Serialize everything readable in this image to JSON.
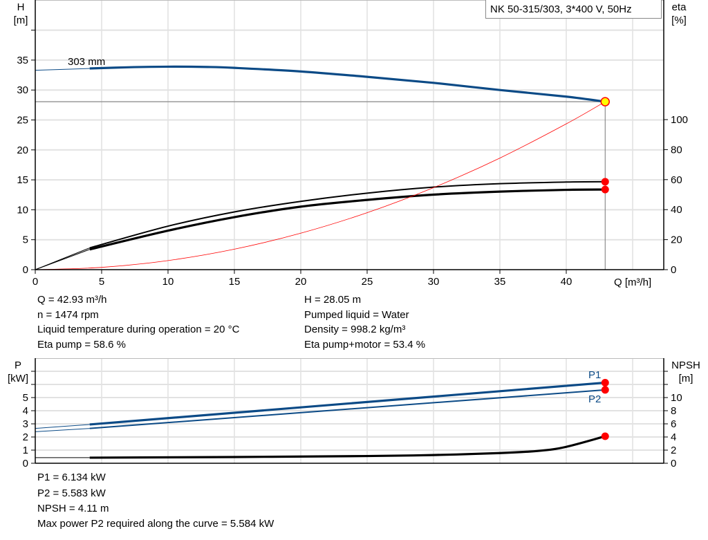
{
  "title": "NK 50-315/303, 3*400 V, 50Hz",
  "colors": {
    "head": "#0b4a86",
    "power": "#0b4a86",
    "eta": "#000000",
    "npsh": "#000000",
    "system": "#ff0000",
    "point": "#ff0000",
    "op_fill": "#ffff00",
    "grid": "#d0d0d0"
  },
  "chart_data": [
    {
      "type": "line",
      "xlabel": "Q [m³/h]",
      "ylabel_left": "H",
      "ylabel_left_unit": "[m]",
      "ylabel_right": "eta",
      "ylabel_right_unit": "[%]",
      "xlim": [
        0,
        47.3
      ],
      "ylim_left": [
        0,
        45
      ],
      "ylim_right": [
        0,
        180
      ],
      "grid": true,
      "x_ticks": [
        "0",
        "5",
        "10",
        "15",
        "20",
        "25",
        "30",
        "35",
        "40"
      ],
      "y_left_ticks": [
        "0",
        "5",
        "10",
        "15",
        "20",
        "25",
        "30",
        "35"
      ],
      "y_right_ticks": [
        "0",
        "20",
        "40",
        "60",
        "80",
        "100"
      ],
      "annotation": "303 mm",
      "operating_point": {
        "Q": 42.93,
        "H": 28.05
      },
      "series": [
        {
          "key": "head",
          "axis": "left",
          "x": [
            0,
            4.1,
            7,
            10,
            13,
            15,
            20,
            25,
            30,
            35,
            40,
            42.93
          ],
          "y": [
            33.3,
            33.6,
            33.8,
            33.9,
            33.85,
            33.7,
            33.1,
            32.2,
            31.2,
            30.0,
            28.9,
            28.05
          ],
          "extrapolated_until": 4.1
        },
        {
          "key": "eta-pump",
          "axis": "right",
          "x": [
            0,
            4.1,
            10,
            15,
            20,
            25,
            30,
            35,
            40,
            42.93
          ],
          "y": [
            0,
            14.5,
            29,
            38.5,
            45.5,
            51,
            55,
            57.3,
            58.4,
            58.6
          ],
          "extrapolated_until": 4.1
        },
        {
          "key": "eta-pump-motor",
          "axis": "right",
          "x": [
            0,
            4.1,
            10,
            15,
            20,
            25,
            30,
            35,
            40,
            42.93
          ],
          "y": [
            0,
            13.5,
            26,
            35,
            42,
            46.5,
            50,
            52,
            53.2,
            53.4
          ],
          "extrapolated_until": 4.1
        },
        {
          "key": "system-curve",
          "axis": "left",
          "x": [
            0,
            5,
            10,
            15,
            20,
            25,
            30,
            35,
            40,
            42.93
          ],
          "y": [
            0,
            0.38,
            1.52,
            3.42,
            6.09,
            9.51,
            13.7,
            18.64,
            24.35,
            28.05
          ]
        }
      ],
      "markers": [
        {
          "axis": "right",
          "x": 42.93,
          "y": 58.6
        },
        {
          "axis": "right",
          "x": 42.93,
          "y": 53.4
        }
      ]
    },
    {
      "type": "line",
      "ylabel_left": "P",
      "ylabel_left_unit": "[kW]",
      "ylabel_right": "NPSH",
      "ylabel_right_unit": "[m]",
      "xlim": [
        0,
        47.3
      ],
      "ylim_left": [
        0,
        8
      ],
      "ylim_right": [
        0,
        16
      ],
      "grid": true,
      "y_left_ticks": [
        "0",
        "1",
        "2",
        "3",
        "4",
        "5"
      ],
      "y_right_ticks": [
        "0",
        "2",
        "4",
        "6",
        "8",
        "10"
      ],
      "series": [
        {
          "key": "P1",
          "name": "P1",
          "axis": "left",
          "x": [
            0,
            4.1,
            42.93
          ],
          "y": [
            2.65,
            2.95,
            6.134
          ],
          "extrapolated_until": 4.1
        },
        {
          "key": "P2",
          "name": "P2",
          "axis": "left",
          "x": [
            0,
            4.1,
            42.93
          ],
          "y": [
            2.4,
            2.65,
            5.583
          ],
          "extrapolated_until": 4.1
        },
        {
          "key": "NPSH",
          "axis": "right",
          "x": [
            0,
            4.1,
            15,
            25,
            30,
            35,
            38,
            40,
            42.93
          ],
          "y": [
            0.85,
            0.85,
            0.95,
            1.1,
            1.25,
            1.55,
            1.9,
            2.5,
            4.11
          ],
          "extrapolated_until": 4.1
        }
      ],
      "markers": [
        {
          "axis": "left",
          "x": 42.93,
          "y": 6.134
        },
        {
          "axis": "left",
          "x": 42.93,
          "y": 5.583
        },
        {
          "axis": "right",
          "x": 42.93,
          "y": 4.11
        }
      ]
    }
  ],
  "info_top": {
    "left": [
      "Q = 42.93 m³/h",
      "n = 1474 rpm",
      "Liquid temperature during operation = 20 °C",
      "Eta pump = 58.6 %"
    ],
    "right": [
      "H = 28.05 m",
      "Pumped liquid = Water",
      "Density = 998.2 kg/m³",
      "Eta pump+motor = 53.4 %"
    ]
  },
  "info_bottom": [
    "P1 = 6.134 kW",
    "P2 = 5.583 kW",
    "NPSH = 4.11 m",
    "Max power P2 required along the curve = 5.584 kW"
  ]
}
